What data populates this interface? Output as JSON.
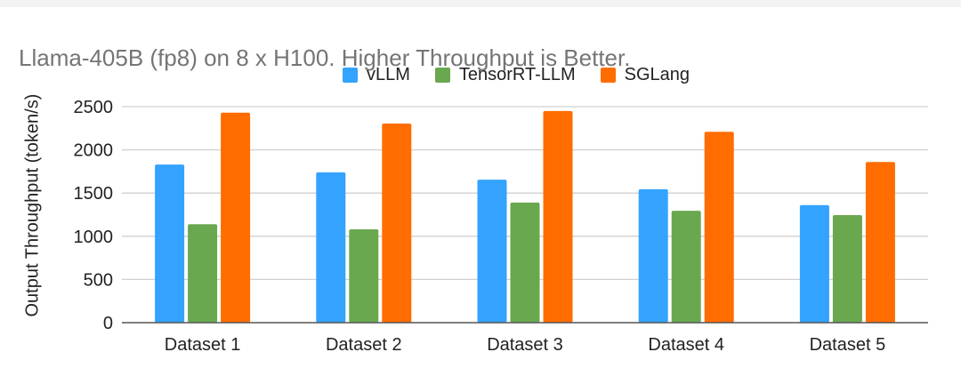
{
  "chart_data": {
    "type": "bar",
    "title": "Llama-405B (fp8) on 8 x H100. Higher Throughput is Better.",
    "xlabel": "",
    "ylabel": "Output Throughput (token/s)",
    "ylim": [
      0,
      2500
    ],
    "yticks": [
      0,
      500,
      1000,
      1500,
      2000,
      2500
    ],
    "grid": true,
    "legend_position": "top",
    "categories": [
      "Dataset 1",
      "Dataset 2",
      "Dataset 3",
      "Dataset 4",
      "Dataset 5"
    ],
    "series": [
      {
        "name": "vLLM",
        "color": "#33a3ff",
        "values": [
          1830,
          1740,
          1655,
          1545,
          1360
        ]
      },
      {
        "name": "TensorRT-LLM",
        "color": "#6aa84f",
        "values": [
          1140,
          1080,
          1390,
          1295,
          1245
        ]
      },
      {
        "name": "SGLang",
        "color": "#ff6d01",
        "values": [
          2430,
          2305,
          2450,
          2210,
          1860
        ]
      }
    ]
  }
}
